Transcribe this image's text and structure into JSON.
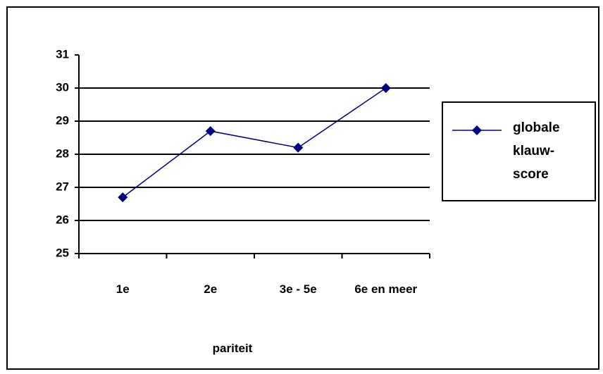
{
  "chart_data": {
    "type": "line",
    "categories": [
      "1e",
      "2e",
      "3e - 5e",
      "6e en meer"
    ],
    "series": [
      {
        "name": "globale klauw-score",
        "color": "#000080",
        "values": [
          26.7,
          28.7,
          28.2,
          30.0
        ]
      }
    ],
    "xlabel": "pariteit",
    "ylim": [
      25,
      31
    ],
    "yticks": [
      25,
      26,
      27,
      28,
      29,
      30,
      31
    ],
    "grid": true,
    "legend": "right"
  }
}
